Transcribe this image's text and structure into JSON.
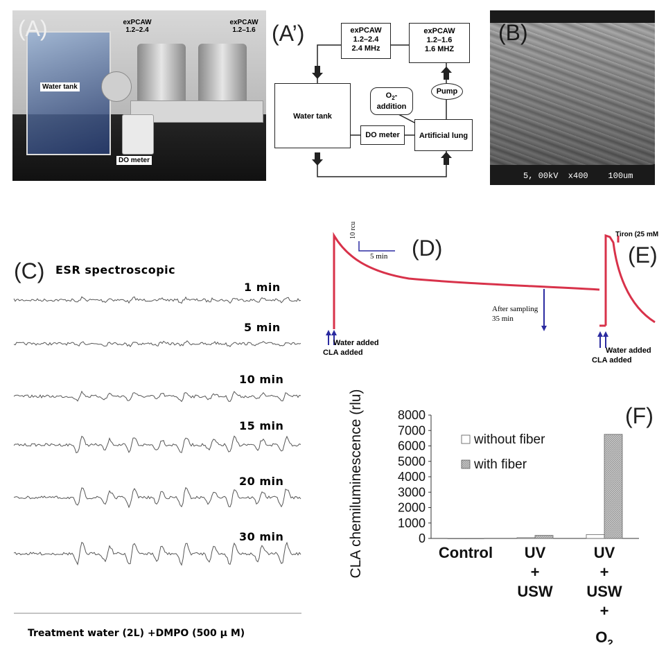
{
  "figure": {
    "labels": {
      "A": "(A)",
      "A_prime": "(A’)",
      "B": "(B)",
      "C": "(C)",
      "D": "(D)",
      "E": "(E)",
      "F": "(F)"
    }
  },
  "panel_A": {
    "exp1_line1": "exPCAW",
    "exp1_line2": "1.2–2.4",
    "exp2_line1": "exPCAW",
    "exp2_line2": "1.2–1.6",
    "water_tank": "Water tank",
    "do_meter": "DO meter"
  },
  "panel_A_prime": {
    "box1_l1": "exPCAW",
    "box1_l2": "1.2–2.4",
    "box1_l3": "2.4 MHz",
    "box2_l1": "exPCAW",
    "box2_l2": "1.2–1.6",
    "box2_l3": "1.6 MHZ",
    "water_tank": "Water tank",
    "do_meter": "DO meter",
    "pump": "Pump",
    "o2_l1": "O",
    "o2_sub": "2",
    "o2_suffix": "-",
    "o2_l2": "addition",
    "artificial_lung": "Artificial lung"
  },
  "panel_B": {
    "scale_text": "5, 00kV  x400    100um"
  },
  "panel_C": {
    "title": "ESR spectroscopic",
    "time_labels": [
      "1 min",
      "5 min",
      "10 min",
      "15 min",
      "20 min",
      "30 min"
    ],
    "footer": "Treatment water (2L) +DMPO (500 μ M)"
  },
  "panel_D": {
    "scale_v": "10 rcu",
    "scale_h": "5 min",
    "after_sampling_l1": "After sampling",
    "after_sampling_l2": "35 min",
    "water_added": "Water added",
    "cla_added": "CLA added"
  },
  "panel_E": {
    "tiron": "Tiron (25 mM",
    "water_added": "Water added",
    "cla_added": "CLA added"
  },
  "chart_data": {
    "type": "bar",
    "title": "",
    "ylabel": "CLA chemiluminescence (rlu)",
    "xlabel": "",
    "ylim": [
      0,
      8000
    ],
    "yticks": [
      "0",
      "1000",
      "2000",
      "3000",
      "4000",
      "5000",
      "6000",
      "7000",
      "8000"
    ],
    "categories": [
      [
        "Control"
      ],
      [
        "UV",
        "+",
        "USW"
      ],
      [
        "UV",
        "+",
        "USW",
        "+",
        "O",
        "2"
      ]
    ],
    "series": [
      {
        "name": "without fiber",
        "values": [
          0,
          50,
          250
        ],
        "color": "#ffffff"
      },
      {
        "name": "with fiber",
        "values": [
          0,
          200,
          6750
        ],
        "color": "#bdbdbd"
      }
    ],
    "legend": "top-left"
  }
}
